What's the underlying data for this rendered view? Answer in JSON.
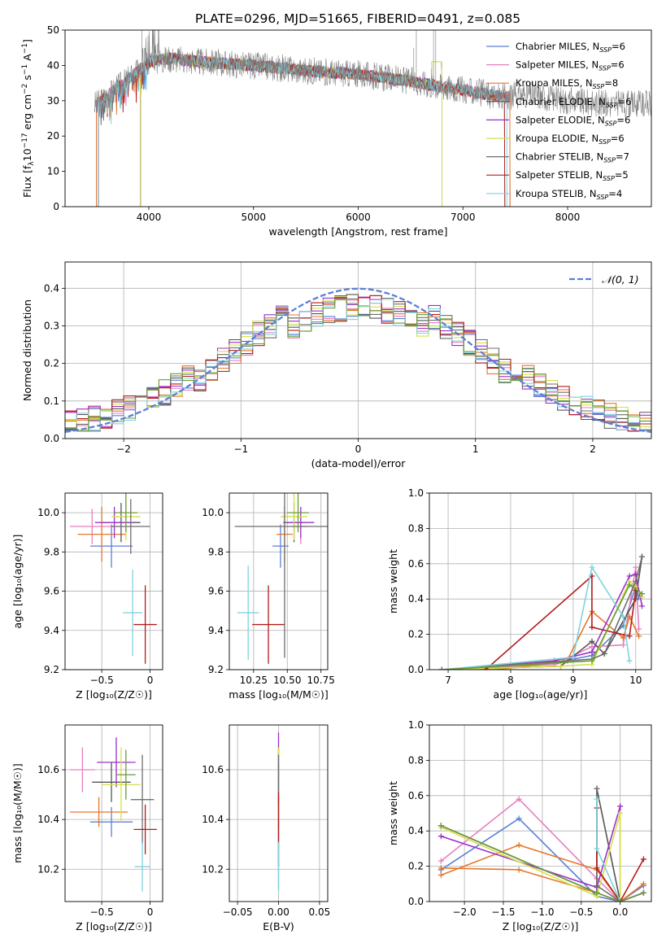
{
  "figure": {
    "title": "PLATE=0296, MJD=51665, FIBERID=0491, z=0.085"
  },
  "colors": {
    "blue": "#5b7fd6",
    "pink": "#e77fc1",
    "orange": "#e6762a",
    "darkgray": "#555555",
    "purple": "#9b30c9",
    "yellowgreen": "#d4e04a",
    "gray": "#6e6e6e",
    "red": "#b31c1c",
    "cyan": "#7fd3dd",
    "olive": "#6a9a3a",
    "normal": "#5b7fd6"
  },
  "models": [
    {
      "name": "Chabrier MILES, N$_{SSP}$=6",
      "label_main": "Chabrier MILES, N",
      "label_sub": "SSP",
      "label_tail": "=6",
      "color": "#5b7fd6"
    },
    {
      "name": "Salpeter MILES",
      "label_main": "Salpeter MILES, N",
      "label_sub": "SSP",
      "label_tail": "=6",
      "color": "#e77fc1"
    },
    {
      "name": "Kroupa MILES",
      "label_main": "Kroupa MILES, N",
      "label_sub": "SSP",
      "label_tail": "=8",
      "color": "#e6762a"
    },
    {
      "name": "Chabrier ELODIE",
      "label_main": "Chabrier ELODIE, N",
      "label_sub": "SSP",
      "label_tail": "=6",
      "color": "#555555"
    },
    {
      "name": "Salpeter ELODIE",
      "label_main": "Salpeter ELODIE, N",
      "label_sub": "SSP",
      "label_tail": "=6",
      "color": "#9b30c9"
    },
    {
      "name": "Kroupa ELODIE",
      "label_main": "Kroupa ELODIE, N",
      "label_sub": "SSP",
      "label_tail": "=6",
      "color": "#d4e04a"
    },
    {
      "name": "Chabrier STELIB",
      "label_main": "Chabrier STELIB, N",
      "label_sub": "SSP",
      "label_tail": "=7",
      "color": "#6e6e6e"
    },
    {
      "name": "Salpeter STELIB",
      "label_main": "Salpeter STELIB, N",
      "label_sub": "SSP",
      "label_tail": "=5",
      "color": "#b31c1c"
    },
    {
      "name": "Kroupa STELIB",
      "label_main": "Kroupa STELIB, N",
      "label_sub": "SSP",
      "label_tail": "=4",
      "color": "#7fd3dd"
    }
  ],
  "chart_data": [
    {
      "id": "spectrum",
      "type": "line",
      "title": "PLATE=0296, MJD=51665, FIBERID=0491, z=0.085",
      "xlabel": "wavelength [Angstrom, rest frame]",
      "ylabel_main": "Flux [f",
      "ylabel_sub": "λ",
      "ylabel_rest": "10",
      "ylabel_exp": "−17",
      "ylabel_units": " erg cm",
      "ylabel_exp2": "−2",
      "ylabel_s": " s",
      "ylabel_exp3": "−1",
      "ylabel_A": " A",
      "ylabel_exp4": "−1",
      "ylabel_end": "]",
      "xlim": [
        3200,
        8800
      ],
      "ylim": [
        0,
        50
      ],
      "xticks": [
        4000,
        5000,
        6000,
        7000,
        8000
      ],
      "yticks": [
        0,
        10,
        20,
        30,
        40,
        50
      ],
      "continuum_x": [
        3500,
        3800,
        4000,
        4200,
        4500,
        5000,
        5500,
        6000,
        6500,
        7000,
        7400,
        7600,
        8000,
        8400
      ],
      "continuum_y": [
        29,
        36,
        41,
        42,
        41,
        40,
        38.5,
        37.5,
        35.5,
        33,
        31,
        32,
        30,
        29
      ],
      "legend_loc": "upper right"
    },
    {
      "id": "residual-hist",
      "type": "line",
      "xlabel": "(data-model)/error",
      "ylabel": "Normed distribution",
      "xlim": [
        -2.5,
        2.5
      ],
      "ylim": [
        0,
        0.47
      ],
      "xticks": [
        -2,
        -1,
        0,
        1,
        2
      ],
      "yticks": [
        0.0,
        0.1,
        0.2,
        0.3,
        0.4
      ],
      "legend": "𝒩(0, 1)",
      "grid": true
    },
    {
      "id": "age-vs-Z",
      "type": "scatter",
      "xlabel": "Z [log₁₀(Z/Z☉)]",
      "ylabel": "age  [log₁₀(age/yr)]",
      "xlim": [
        -0.88,
        0.13
      ],
      "ylim": [
        9.2,
        10.1
      ],
      "xticks": [
        -0.5,
        0.0
      ],
      "yticks": [
        9.2,
        9.4,
        9.6,
        9.8,
        10.0
      ],
      "points": [
        {
          "x": -0.4,
          "y": 9.83,
          "xerr": 0.22,
          "yerr": 0.11,
          "color": "#5b7fd6"
        },
        {
          "x": -0.6,
          "y": 9.93,
          "xerr": 0.23,
          "yerr": 0.09,
          "color": "#e77fc1"
        },
        {
          "x": -0.5,
          "y": 9.89,
          "xerr": 0.25,
          "yerr": 0.14,
          "color": "#e6762a"
        },
        {
          "x": -0.3,
          "y": 9.95,
          "xerr": 0.2,
          "yerr": 0.1,
          "color": "#555555"
        },
        {
          "x": -0.37,
          "y": 9.95,
          "xerr": 0.2,
          "yerr": 0.08,
          "color": "#9b30c9"
        },
        {
          "x": -0.25,
          "y": 9.98,
          "xerr": 0.15,
          "yerr": 0.12,
          "color": "#d4e04a"
        },
        {
          "x": -0.2,
          "y": 9.93,
          "xerr": 0.2,
          "yerr": 0.14,
          "color": "#6e6e6e"
        },
        {
          "x": -0.05,
          "y": 9.43,
          "xerr": 0.12,
          "yerr": 0.2,
          "color": "#b31c1c"
        },
        {
          "x": -0.18,
          "y": 9.49,
          "xerr": 0.1,
          "yerr": 0.22,
          "color": "#7fd3dd"
        },
        {
          "x": -0.25,
          "y": 10.0,
          "xerr": 0.12,
          "yerr": 0.1,
          "color": "#6a9a3a"
        }
      ]
    },
    {
      "id": "age-vs-mass",
      "type": "scatter",
      "xlabel": "mass [log₁₀(M/M☉)]",
      "ylabel": "",
      "xlim": [
        10.07,
        10.8
      ],
      "ylim": [
        9.2,
        10.1
      ],
      "xticks": [
        10.25,
        10.5,
        10.75
      ],
      "yticks": [
        9.2,
        9.4,
        9.6,
        9.8,
        10.0
      ],
      "points": [
        {
          "x": 10.45,
          "y": 9.83,
          "xerr": 0.06,
          "yerr": 0.11,
          "color": "#5b7fd6"
        },
        {
          "x": 10.6,
          "y": 9.93,
          "xerr": 0.05,
          "yerr": 0.09,
          "color": "#e77fc1"
        },
        {
          "x": 10.48,
          "y": 9.89,
          "xerr": 0.06,
          "yerr": 0.14,
          "color": "#e6762a"
        },
        {
          "x": 10.55,
          "y": 9.95,
          "xerr": 0.08,
          "yerr": 0.1,
          "color": "#555555"
        },
        {
          "x": 10.6,
          "y": 9.95,
          "xerr": 0.1,
          "yerr": 0.08,
          "color": "#9b30c9"
        },
        {
          "x": 10.55,
          "y": 9.98,
          "xerr": 0.1,
          "yerr": 0.12,
          "color": "#d4e04a"
        },
        {
          "x": 10.48,
          "y": 9.93,
          "xerr": 0.37,
          "yerr": 0.67,
          "color": "#6e6e6e"
        },
        {
          "x": 10.36,
          "y": 9.43,
          "xerr": 0.12,
          "yerr": 0.2,
          "color": "#b31c1c"
        },
        {
          "x": 10.21,
          "y": 9.49,
          "xerr": 0.08,
          "yerr": 0.24,
          "color": "#7fd3dd"
        },
        {
          "x": 10.58,
          "y": 10.0,
          "xerr": 0.08,
          "yerr": 0.1,
          "color": "#6a9a3a"
        }
      ]
    },
    {
      "id": "massweight-vs-age",
      "type": "line",
      "xlabel": "age  [log₁₀(age/yr)]",
      "ylabel": "mass weight",
      "xlim": [
        6.7,
        10.25
      ],
      "ylim": [
        0,
        1
      ],
      "xticks": [
        7,
        8,
        9,
        10
      ],
      "yticks": [
        0.0,
        0.2,
        0.4,
        0.6,
        0.8,
        1.0
      ],
      "series": [
        {
          "color": "#5b7fd6",
          "x": [
            6.9,
            8.7,
            9.0,
            9.3,
            9.8,
            10.0,
            10.05
          ],
          "y": [
            0.0,
            0.03,
            0.06,
            0.08,
            0.25,
            0.47,
            0.41
          ]
        },
        {
          "color": "#e77fc1",
          "x": [
            6.9,
            8.7,
            9.3,
            9.8,
            10.0,
            10.05
          ],
          "y": [
            0.0,
            0.03,
            0.13,
            0.14,
            0.58,
            0.23
          ]
        },
        {
          "color": "#e6762a",
          "x": [
            6.9,
            7.8,
            8.9,
            9.3,
            9.8,
            9.9,
            10.05
          ],
          "y": [
            0.0,
            0.0,
            0.05,
            0.33,
            0.18,
            0.3,
            0.19
          ]
        },
        {
          "color": "#555555",
          "x": [
            6.9,
            8.8,
            9.3,
            9.5,
            10.0,
            10.1
          ],
          "y": [
            0.0,
            0.02,
            0.16,
            0.09,
            0.4,
            0.64
          ]
        },
        {
          "color": "#9b30c9",
          "x": [
            6.9,
            8.7,
            9.3,
            9.9,
            10.0,
            10.1
          ],
          "y": [
            0.0,
            0.05,
            0.1,
            0.53,
            0.54,
            0.36
          ]
        },
        {
          "color": "#d4e04a",
          "x": [
            6.9,
            8.8,
            9.3,
            9.9,
            10.0,
            10.1
          ],
          "y": [
            0.0,
            0.02,
            0.03,
            0.5,
            0.47,
            0.41
          ]
        },
        {
          "color": "#6e6e6e",
          "x": [
            6.9,
            9.3,
            9.5,
            10.0,
            10.1
          ],
          "y": [
            0.0,
            0.06,
            0.09,
            0.5,
            0.64
          ]
        },
        {
          "color": "#b31c1c",
          "x": [
            7.6,
            9.3,
            9.3,
            9.9,
            10.0
          ],
          "y": [
            0.0,
            0.53,
            0.24,
            0.19,
            0.45
          ]
        },
        {
          "color": "#7fd3dd",
          "x": [
            6.9,
            9.0,
            9.3,
            9.8,
            9.9
          ],
          "y": [
            0.0,
            0.07,
            0.58,
            0.3,
            0.05
          ]
        },
        {
          "color": "#6a9a3a",
          "x": [
            6.9,
            9.3,
            9.9,
            10.1
          ],
          "y": [
            0.0,
            0.05,
            0.48,
            0.43
          ]
        }
      ]
    },
    {
      "id": "mass-vs-Z",
      "type": "scatter",
      "xlabel": "Z [log₁₀(Z/Z☉)]",
      "ylabel": "mass [log₁₀(M/M☉)]",
      "xlim": [
        -0.88,
        0.13
      ],
      "ylim": [
        10.07,
        10.78
      ],
      "xticks": [
        -0.5,
        0.0
      ],
      "yticks": [
        10.2,
        10.4,
        10.6
      ],
      "points": [
        {
          "x": -0.4,
          "y": 10.39,
          "xerr": 0.22,
          "yerr": 0.06,
          "color": "#5b7fd6"
        },
        {
          "x": -0.7,
          "y": 10.6,
          "xerr": 0.13,
          "yerr": 0.09,
          "color": "#e77fc1"
        },
        {
          "x": -0.53,
          "y": 10.43,
          "xerr": 0.3,
          "yerr": 0.06,
          "color": "#e6762a"
        },
        {
          "x": -0.4,
          "y": 10.55,
          "xerr": 0.2,
          "yerr": 0.08,
          "color": "#555555"
        },
        {
          "x": -0.35,
          "y": 10.63,
          "xerr": 0.2,
          "yerr": 0.1,
          "color": "#9b30c9"
        },
        {
          "x": -0.3,
          "y": 10.54,
          "xerr": 0.2,
          "yerr": 0.15,
          "color": "#d4e04a"
        },
        {
          "x": -0.08,
          "y": 10.48,
          "xerr": 0.12,
          "yerr": 0.18,
          "color": "#6e6e6e"
        },
        {
          "x": -0.05,
          "y": 10.36,
          "xerr": 0.12,
          "yerr": 0.1,
          "color": "#b31c1c"
        },
        {
          "x": -0.08,
          "y": 10.21,
          "xerr": 0.08,
          "yerr": 0.1,
          "color": "#7fd3dd"
        },
        {
          "x": -0.25,
          "y": 10.58,
          "xerr": 0.1,
          "yerr": 0.1,
          "color": "#6a9a3a"
        }
      ]
    },
    {
      "id": "mass-vs-ebv",
      "type": "scatter",
      "xlabel": "E(B-V)",
      "ylabel": "",
      "xlim": [
        -0.06,
        0.06
      ],
      "ylim": [
        10.07,
        10.78
      ],
      "xticks": [
        -0.05,
        0.0,
        0.05
      ],
      "yticks": [
        10.2,
        10.4,
        10.6
      ],
      "points": [
        {
          "x": 0.0,
          "y": 10.39,
          "yerr": 0.27,
          "color": "#5b7fd6"
        },
        {
          "x": 0.0,
          "y": 10.6,
          "yerr": 0.09,
          "color": "#e77fc1"
        },
        {
          "x": 0.0,
          "y": 10.43,
          "yerr": 0.06,
          "color": "#e6762a"
        },
        {
          "x": 0.0,
          "y": 10.55,
          "yerr": 0.08,
          "color": "#555555"
        },
        {
          "x": 0.0,
          "y": 10.63,
          "yerr": 0.12,
          "color": "#9b30c9"
        },
        {
          "x": 0.0,
          "y": 10.54,
          "yerr": 0.15,
          "color": "#d4e04a"
        },
        {
          "x": 0.0,
          "y": 10.48,
          "yerr": 0.18,
          "color": "#6e6e6e"
        },
        {
          "x": 0.0,
          "y": 10.36,
          "yerr": 0.15,
          "color": "#b31c1c"
        },
        {
          "x": 0.0,
          "y": 10.21,
          "yerr": 0.1,
          "color": "#7fd3dd"
        }
      ]
    },
    {
      "id": "massweight-vs-Z",
      "type": "line",
      "xlabel": "Z [log₁₀(Z/Z☉)]",
      "ylabel": "mass weight",
      "xlim": [
        -2.45,
        0.4
      ],
      "ylim": [
        0,
        1
      ],
      "xticks": [
        -2.0,
        -1.5,
        -1.0,
        -0.5,
        0.0
      ],
      "yticks": [
        0.0,
        0.2,
        0.4,
        0.6,
        0.8,
        1.0
      ],
      "series": [
        {
          "color": "#5b7fd6",
          "x": [
            -2.3,
            -1.3,
            -0.3,
            0.0,
            0.3
          ],
          "y": [
            0.18,
            0.47,
            0.03,
            0.0,
            0.09
          ]
        },
        {
          "color": "#e77fc1",
          "x": [
            -2.3,
            -1.3,
            -0.3,
            0.0,
            0.3
          ],
          "y": [
            0.23,
            0.58,
            0.13,
            0.0,
            0.05
          ]
        },
        {
          "color": "#e6762a",
          "x": [
            -2.3,
            -1.3,
            -0.3,
            0.0,
            0.3
          ],
          "y": [
            0.15,
            0.32,
            0.18,
            0.0,
            0.1
          ]
        },
        {
          "color": "#e6762a",
          "x": [
            -2.3,
            -1.3,
            -0.3,
            0.0
          ],
          "y": [
            0.19,
            0.18,
            0.05,
            0.0
          ]
        },
        {
          "color": "#555555",
          "x": [
            -2.3,
            -0.3,
            -0.3,
            0.0,
            0.3
          ],
          "y": [
            0.43,
            0.05,
            0.64,
            0.0,
            0.05
          ]
        },
        {
          "color": "#9b30c9",
          "x": [
            -2.3,
            -0.3,
            0.0,
            0.0,
            0.3
          ],
          "y": [
            0.37,
            0.08,
            0.54,
            0.0,
            0.05
          ]
        },
        {
          "color": "#d4e04a",
          "x": [
            -2.3,
            -0.3,
            0.0,
            0.0
          ],
          "y": [
            0.42,
            0.03,
            0.5,
            0.0
          ]
        },
        {
          "color": "#6e6e6e",
          "x": [
            -0.3,
            -0.3,
            0.0
          ],
          "y": [
            0.64,
            0.09,
            0.0
          ]
        },
        {
          "color": "#b31c1c",
          "x": [
            -0.3,
            -0.3,
            0.0,
            0.3
          ],
          "y": [
            0.53,
            0.19,
            0.0,
            0.24
          ]
        },
        {
          "color": "#7fd3dd",
          "x": [
            -0.3,
            -0.3,
            0.0
          ],
          "y": [
            0.58,
            0.3,
            0.0
          ]
        },
        {
          "color": "#6a9a3a",
          "x": [
            -2.3,
            -0.3,
            0.0,
            0.3
          ],
          "y": [
            0.43,
            0.05,
            0.0,
            0.05
          ]
        }
      ]
    }
  ]
}
